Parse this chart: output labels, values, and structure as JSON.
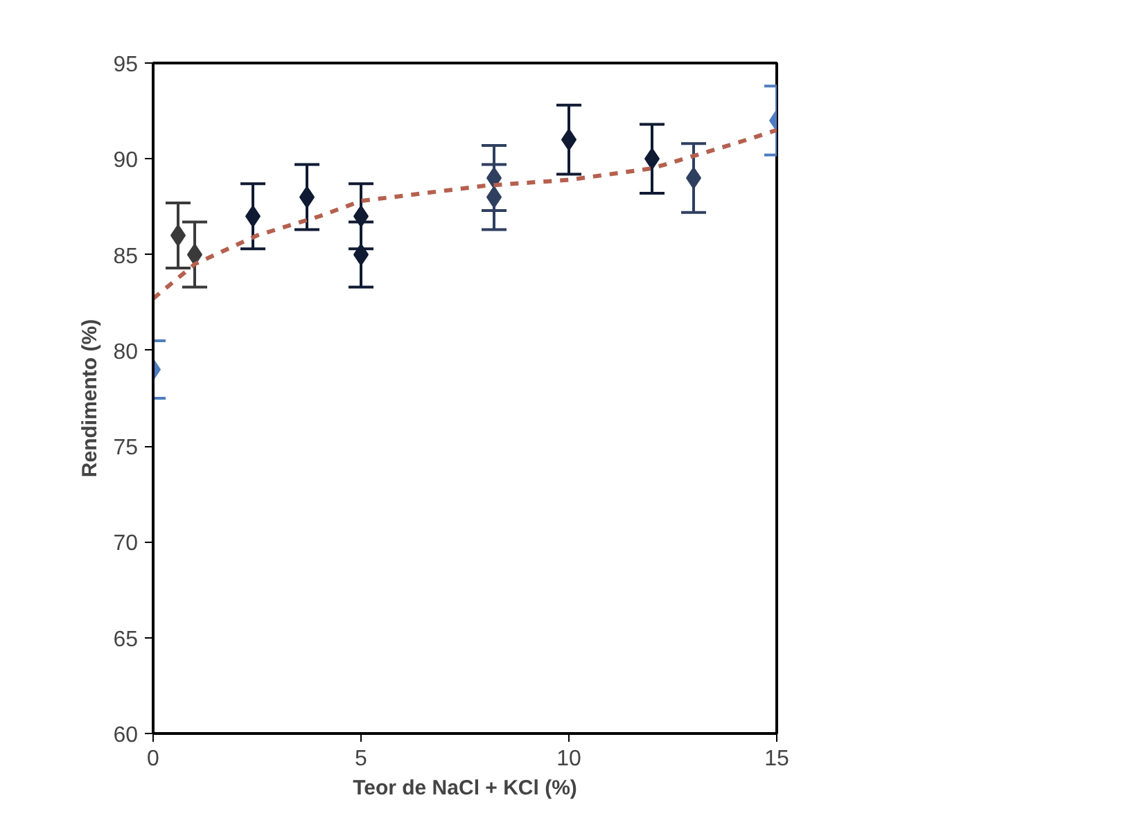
{
  "chart_data": {
    "type": "scatter",
    "xlabel": "Teor de NaCl + KCl (%)",
    "ylabel": "Rendimento (%)",
    "xlim": [
      0,
      15
    ],
    "ylim": [
      60,
      95
    ],
    "xticks": [
      0,
      5,
      10,
      15
    ],
    "yticks": [
      60,
      65,
      70,
      75,
      80,
      85,
      90,
      95
    ],
    "grid": false,
    "series": [
      {
        "marker": "diamond",
        "x": [
          0,
          0.6,
          1,
          2.4,
          3.7,
          5,
          5,
          8.2,
          8.2,
          10,
          12,
          13,
          15
        ],
        "values": [
          79,
          86,
          85,
          87,
          88,
          87,
          85,
          89,
          88,
          91,
          90,
          89,
          92
        ],
        "errors": [
          1.5,
          1.7,
          1.7,
          1.7,
          1.7,
          1.7,
          1.7,
          1.7,
          1.7,
          1.8,
          1.8,
          1.8,
          1.8
        ],
        "colors": [
          "#4f7cc0",
          "#3a3a3a",
          "#3a3a3a",
          "#101a33",
          "#101a33",
          "#101a33",
          "#101a33",
          "#2f3f5f",
          "#2f3f5f",
          "#101a33",
          "#101a33",
          "#2f3f5f",
          "#4f7cc0"
        ]
      },
      {
        "type": "line",
        "marker": "none",
        "line_style": "dashed",
        "color": "#b5604f",
        "x": [
          0,
          1,
          2.5,
          4,
          5,
          8,
          10,
          12,
          14,
          15
        ],
        "values": [
          82.7,
          84.5,
          86,
          87,
          87.8,
          88.6,
          88.9,
          89.5,
          90.8,
          91.5
        ]
      }
    ]
  }
}
